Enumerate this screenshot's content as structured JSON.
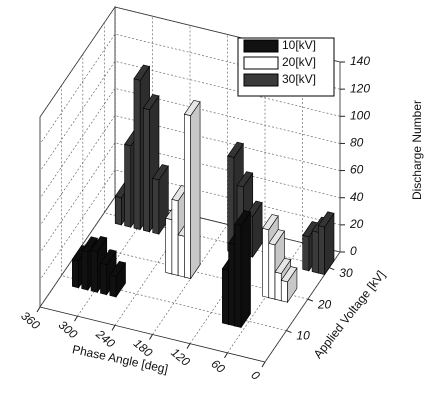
{
  "chart_data": {
    "type": "bar3d",
    "xlabel": "Phase Angle [deg]",
    "zlabel": "Applied Voltage [kV]",
    "ylabel": "Discharge Number",
    "xlim": [
      0,
      360
    ],
    "xticks": [
      0,
      60,
      120,
      180,
      240,
      300,
      360
    ],
    "zlim": [
      0,
      35
    ],
    "zticks": [
      10,
      20,
      30
    ],
    "ylim": [
      0,
      140
    ],
    "yticks": [
      0,
      20,
      40,
      60,
      80,
      100,
      120,
      140
    ],
    "grid": true,
    "legend": "upper right",
    "series": [
      {
        "name": "10[kV]",
        "color": "#111111",
        "z": 10,
        "x": [
          330,
          315,
          300,
          285,
          270,
          90,
          80,
          70
        ],
        "values": [
          20,
          28,
          30,
          22,
          15,
          40,
          60,
          75
        ]
      },
      {
        "name": "20[kV]",
        "color": "#ffffff",
        "z": 20,
        "x": [
          215,
          205,
          195,
          185,
          60,
          50,
          40,
          30
        ],
        "values": [
          40,
          55,
          30,
          120,
          50,
          40,
          20,
          15
        ]
      },
      {
        "name": "30[kV]",
        "color": "#3a3a3a",
        "z": 30,
        "x": [
          330,
          315,
          300,
          285,
          270,
          150,
          135,
          120,
          30,
          15,
          5
        ],
        "values": [
          20,
          60,
          110,
          90,
          40,
          70,
          50,
          30,
          25,
          30,
          35
        ]
      }
    ]
  }
}
